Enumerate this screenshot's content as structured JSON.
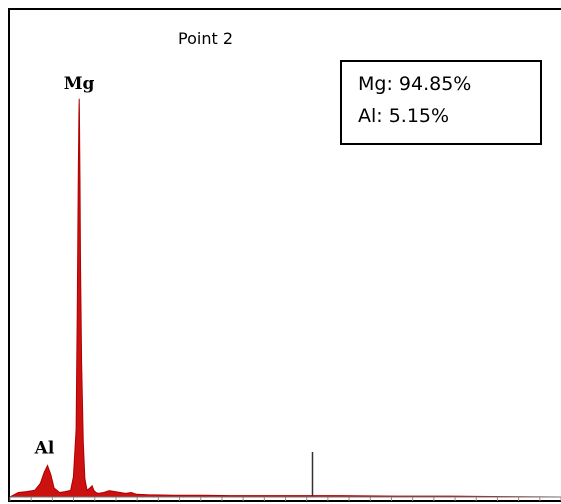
{
  "chart_data": {
    "type": "area",
    "title": "Point 2",
    "xlabel": "",
    "ylabel": "",
    "xlim": [
      0,
      10
    ],
    "ylim": [
      0,
      1.0
    ],
    "grid": false,
    "series": [
      {
        "x": [
          0.0,
          0.15,
          0.3,
          0.45,
          0.55,
          0.62,
          0.68,
          0.74,
          0.8,
          0.9,
          1.0,
          1.1,
          1.15,
          1.2,
          1.22,
          1.24,
          1.25,
          1.255,
          1.26,
          1.27,
          1.28,
          1.3,
          1.33,
          1.36,
          1.4,
          1.45,
          1.49,
          1.52,
          1.56,
          1.6,
          1.7,
          1.8,
          2.0,
          2.1,
          2.2,
          2.3,
          2.5,
          3.0,
          3.5,
          4.0,
          5.0,
          5.5,
          6.0,
          7.0,
          8.0,
          9.0,
          10.0
        ],
        "values": [
          0.0,
          0.01,
          0.012,
          0.015,
          0.03,
          0.055,
          0.07,
          0.05,
          0.02,
          0.01,
          0.012,
          0.015,
          0.045,
          0.15,
          0.4,
          0.72,
          0.85,
          0.885,
          0.86,
          0.7,
          0.52,
          0.3,
          0.12,
          0.04,
          0.015,
          0.02,
          0.025,
          0.015,
          0.01,
          0.008,
          0.01,
          0.014,
          0.01,
          0.008,
          0.01,
          0.006,
          0.005,
          0.004,
          0.004,
          0.003,
          0.003,
          0.003,
          0.003,
          0.002,
          0.002,
          0.001,
          0.0
        ],
        "color": "#cc1111"
      }
    ],
    "peak_labels": [
      {
        "label": "Mg",
        "x": 1.254,
        "y": 0.885
      },
      {
        "label": "Al",
        "x": 0.68,
        "y": 0.07
      }
    ],
    "marker": {
      "x": 5.49,
      "height": 0.1
    },
    "annotation_box": {
      "lines": [
        "Mg: 94.85%",
        "Al: 5.15%"
      ]
    },
    "x_ticks_count": 26
  }
}
